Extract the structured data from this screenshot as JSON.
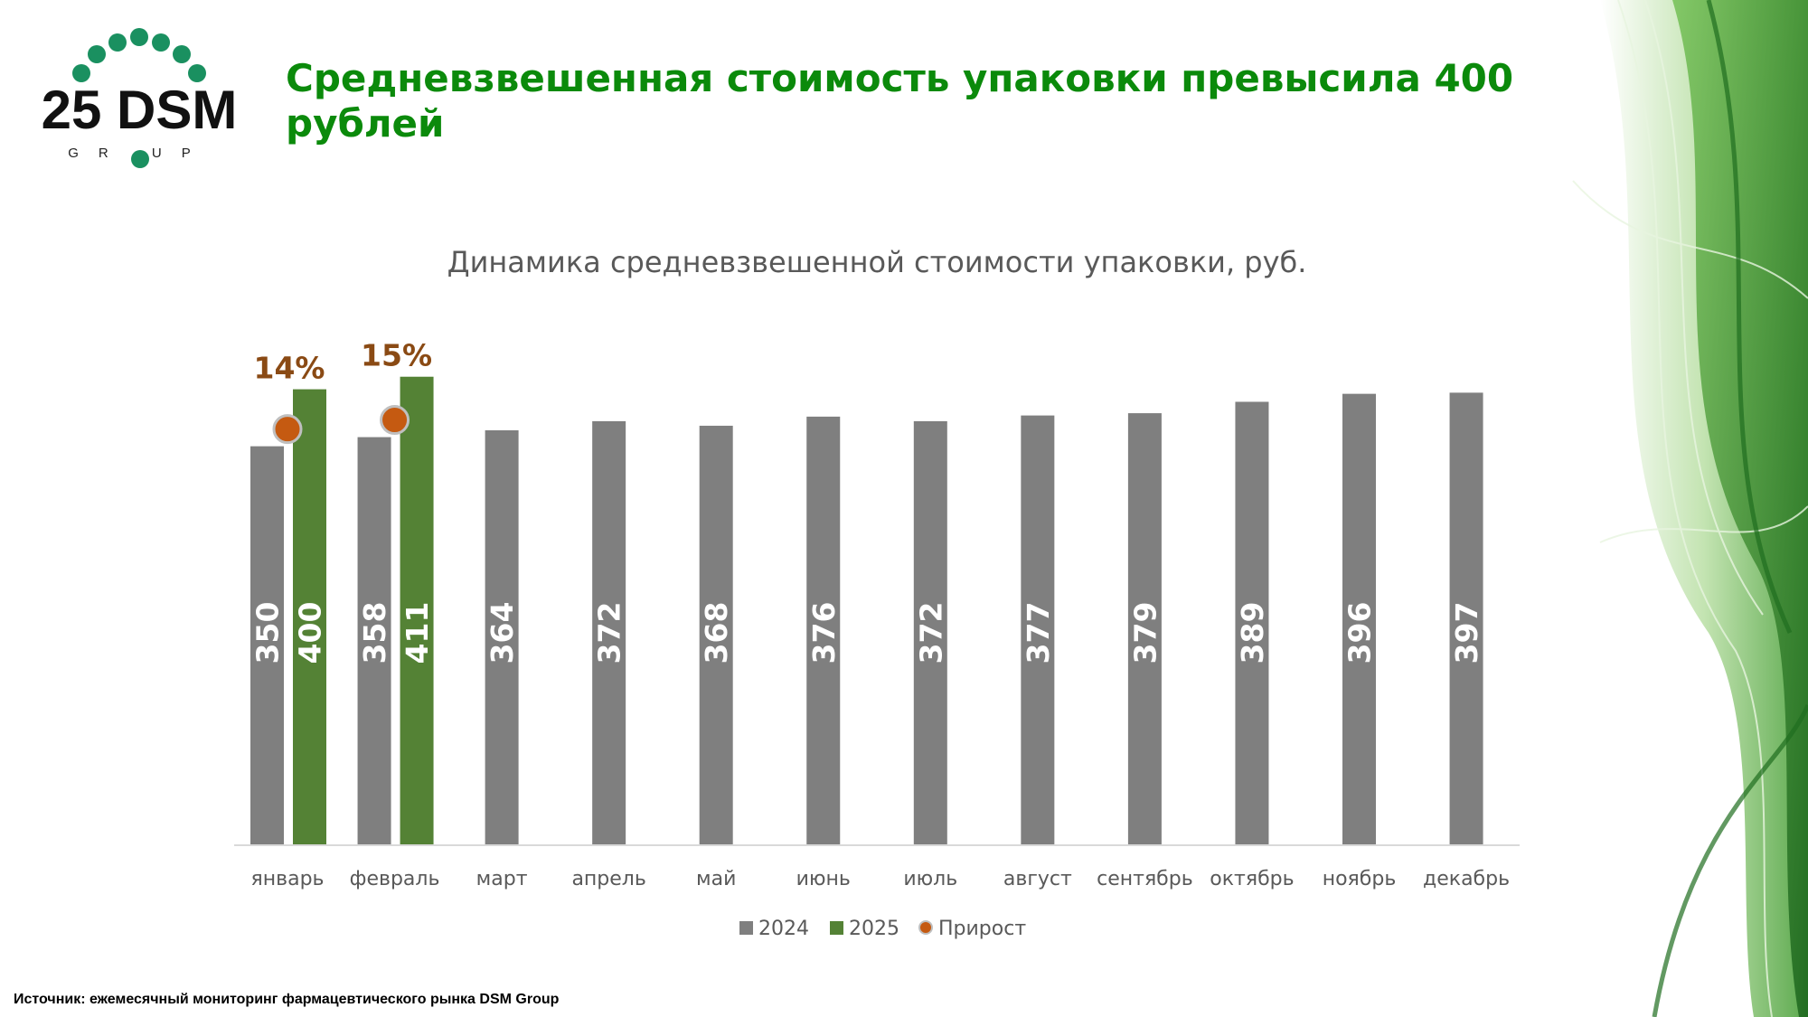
{
  "logo": {
    "text": "25 DSM",
    "subtext": "GROUP"
  },
  "header": {
    "title": "Средневзвешенная стоимость упаковки превысила 400 рублей"
  },
  "source": "Источник: ежемесячный мониторинг фармацевтического рынка DSM Group",
  "colors": {
    "title": "#0b8a0b",
    "s2024": "#7f7f7f",
    "s2025": "#548235",
    "growth": "#c55a11",
    "growth_label": "#8a4a14"
  },
  "chart_data": {
    "type": "bar",
    "title": "Динамика средневзвешенной стоимости упаковки, руб.",
    "categories": [
      "январь",
      "февраль",
      "март",
      "апрель",
      "май",
      "июнь",
      "июль",
      "август",
      "сентябрь",
      "октябрь",
      "ноябрь",
      "декабрь"
    ],
    "series": [
      {
        "name": "2024",
        "values": [
          350,
          358,
          364,
          372,
          368,
          376,
          372,
          377,
          379,
          389,
          396,
          397
        ]
      },
      {
        "name": "2025",
        "values": [
          400,
          411,
          null,
          null,
          null,
          null,
          null,
          null,
          null,
          null,
          null,
          null
        ]
      },
      {
        "name": "Прирост",
        "values": [
          14,
          15,
          null,
          null,
          null,
          null,
          null,
          null,
          null,
          null,
          null,
          null
        ],
        "labels": [
          "14%",
          "15%"
        ]
      }
    ],
    "ylim": [
      0,
      420
    ],
    "legend": "bottom",
    "grid": false
  }
}
